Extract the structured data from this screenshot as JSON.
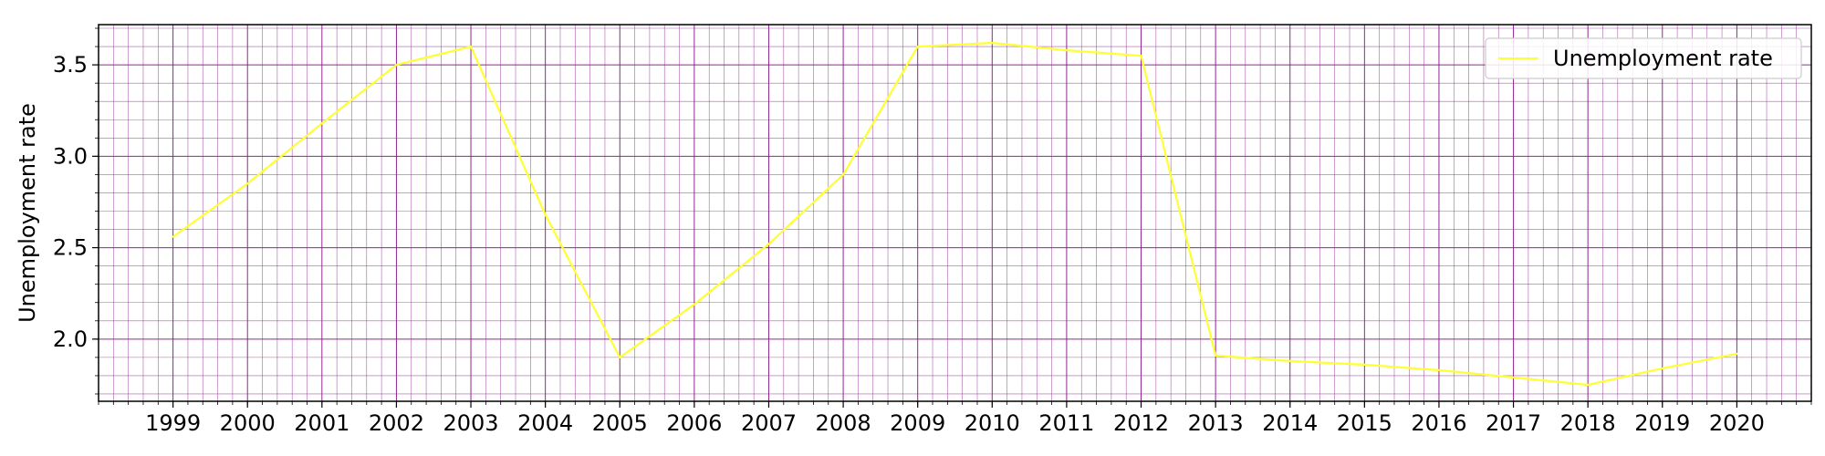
{
  "chart_data": {
    "type": "line",
    "title": "",
    "xlabel": "",
    "ylabel": "Unemployment rate",
    "x": [
      1999,
      2000,
      2001,
      2002,
      2003,
      2004,
      2005,
      2006,
      2007,
      2008,
      2009,
      2010,
      2011,
      2012,
      2013,
      2014,
      2015,
      2016,
      2017,
      2018,
      2019,
      2020
    ],
    "x_tick_labels": [
      "1999",
      "2000",
      "2001",
      "2002",
      "2003",
      "2004",
      "2005",
      "2006",
      "2007",
      "2008",
      "2009",
      "2010",
      "2011",
      "2012",
      "2013",
      "2014",
      "2015",
      "2016",
      "2017",
      "2018",
      "2019",
      "2020"
    ],
    "series": [
      {
        "name": "Unemployment rate",
        "color": "#ffff33",
        "values": [
          2.56,
          2.85,
          3.18,
          3.5,
          3.6,
          2.68,
          1.9,
          2.19,
          2.52,
          2.9,
          3.6,
          3.62,
          3.58,
          3.55,
          1.91,
          1.88,
          1.86,
          1.83,
          1.79,
          1.75,
          1.84,
          1.92
        ]
      }
    ],
    "xlim": [
      1998,
      2021
    ],
    "ylim": [
      1.66,
      3.72
    ],
    "y_ticks": [
      2.0,
      2.5,
      3.0,
      3.5
    ],
    "y_tick_labels": [
      "2.0",
      "2.5",
      "3.0",
      "3.5"
    ],
    "grid": true,
    "minor_grid": true,
    "grid_color": "#8b1a8b",
    "legend_position": "upper right"
  }
}
